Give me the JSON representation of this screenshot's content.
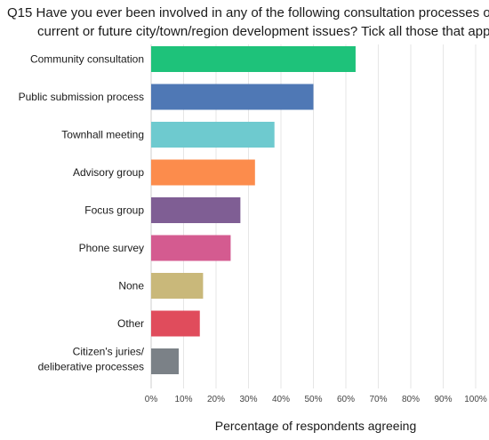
{
  "title_line1": "Q15 Have you ever been involved in any of the following consultation processes on",
  "title_line2": "current or future city/town/region development issues? Tick all those that apply.",
  "chart_data": {
    "type": "bar",
    "orientation": "horizontal",
    "title": "Q15 Have you ever been involved in any of the following consultation processes on current or future city/town/region development issues? Tick all those that apply.",
    "xlabel": "Percentage of respondents agreeing",
    "ylabel": "",
    "xlim": [
      0,
      100
    ],
    "x_ticks": [
      "0%",
      "10%",
      "20%",
      "30%",
      "40%",
      "50%",
      "60%",
      "70%",
      "80%",
      "90%",
      "100%"
    ],
    "grid": "vertical",
    "categories": [
      [
        "Community consultation"
      ],
      [
        "Public submission process"
      ],
      [
        "Townhall meeting"
      ],
      [
        "Advisory group"
      ],
      [
        "Focus group"
      ],
      [
        "Phone survey"
      ],
      [
        "None"
      ],
      [
        "Other"
      ],
      [
        "Citizen's juries/",
        "deliberative processes"
      ]
    ],
    "values": [
      63,
      50,
      38,
      32,
      27.5,
      24.5,
      16,
      15,
      8.5
    ],
    "colors": [
      "#1ec27a",
      "#4f78b5",
      "#6ecacf",
      "#fc8c4c",
      "#7f5e94",
      "#d45b90",
      "#c9b87a",
      "#e04c5c",
      "#7b8187"
    ]
  }
}
